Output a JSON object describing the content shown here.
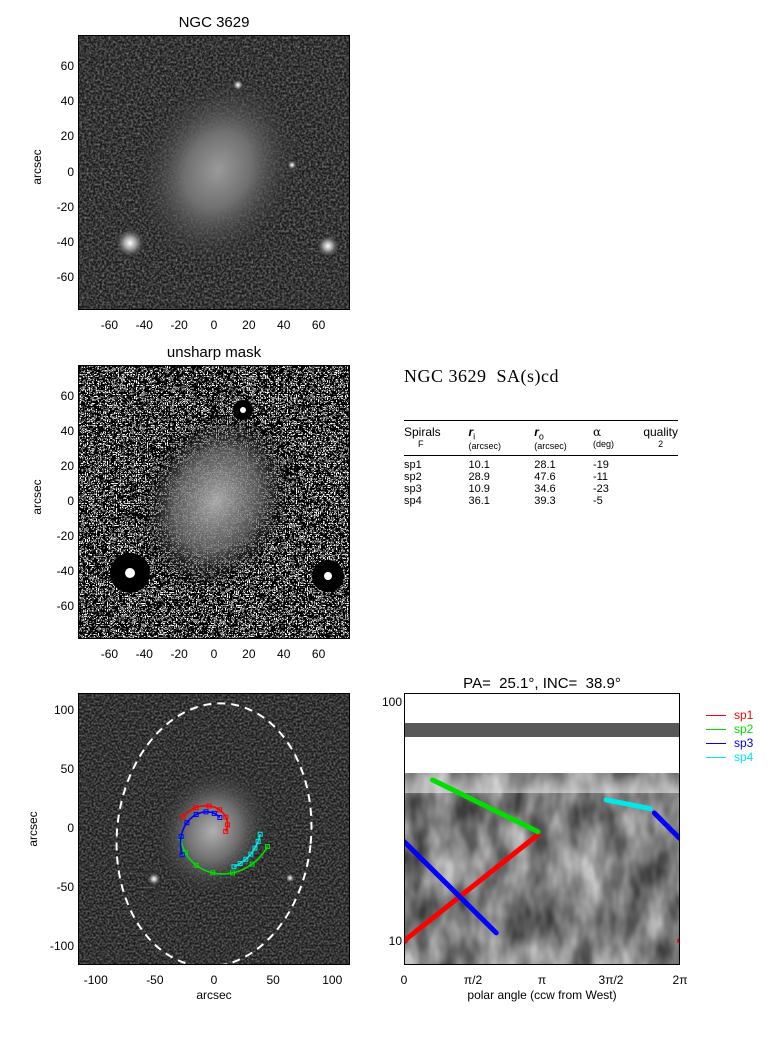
{
  "panel1": {
    "title": "NGC 3629",
    "ylabel": "arcsec",
    "xticks": [
      "-60",
      "-40",
      "-20",
      "0",
      "20",
      "40",
      "60"
    ],
    "yticks": [
      "60",
      "40",
      "20",
      "0",
      "-20",
      "-40",
      "-60"
    ]
  },
  "panel2": {
    "title": "unsharp mask",
    "ylabel": "arcsec",
    "xticks": [
      "-60",
      "-40",
      "-20",
      "0",
      "20",
      "40",
      "60"
    ],
    "yticks": [
      "60",
      "40",
      "20",
      "0",
      "-20",
      "-40",
      "-60"
    ]
  },
  "info": {
    "galaxy_title": "NGC 3629  SA(s)cd",
    "table": {
      "h_spirals": "Spirals",
      "h_spirals_sub": "F",
      "h_ri": "r",
      "h_ri_sub": "i",
      "h_ri_unit": "(arcsec)",
      "h_ro": "r",
      "h_ro_sub": "o",
      "h_ro_unit": "(arcsec)",
      "h_alpha": "α",
      "h_alpha_unit": "(deg)",
      "h_quality": "quality",
      "h_quality_val": "2",
      "rows": [
        {
          "name": "sp1",
          "ri": "10.1",
          "ro": "28.1",
          "alpha": "-19"
        },
        {
          "name": "sp2",
          "ri": "28.9",
          "ro": "47.6",
          "alpha": "-11"
        },
        {
          "name": "sp3",
          "ri": "10.9",
          "ro": "34.6",
          "alpha": "-23"
        },
        {
          "name": "sp4",
          "ri": "36.1",
          "ro": "39.3",
          "alpha": "-5"
        }
      ]
    }
  },
  "panel3": {
    "xlabel": "arcsec",
    "ylabel": "arcsec",
    "xticks": [
      "-100",
      "-50",
      "0",
      "50",
      "100"
    ],
    "yticks": [
      "100",
      "50",
      "0",
      "-50",
      "-100"
    ]
  },
  "panel4": {
    "title": "PA=  25.1°, INC=  38.9°",
    "xlabel": "polar angle (ccw from West)",
    "xticks": [
      "0",
      "π/2",
      "π",
      "3π/2",
      "2π"
    ],
    "yticks": [
      "100",
      "10"
    ]
  },
  "legend": [
    {
      "name": "sp1",
      "color": "#ff0000"
    },
    {
      "name": "sp2",
      "color": "#00e000"
    },
    {
      "name": "sp3",
      "color": "#0000ff"
    },
    {
      "name": "sp4",
      "color": "#00e8e8"
    }
  ],
  "chart_data": [
    {
      "type": "heatmap",
      "title": "NGC 3629",
      "xlabel": "",
      "ylabel": "arcsec",
      "xlim": [
        -78,
        78
      ],
      "ylim": [
        -78,
        78
      ]
    },
    {
      "type": "heatmap",
      "title": "unsharp mask",
      "xlabel": "",
      "ylabel": "arcsec",
      "xlim": [
        -78,
        78
      ],
      "ylim": [
        -78,
        78
      ]
    },
    {
      "type": "heatmap",
      "title": "",
      "xlabel": "arcsec",
      "ylabel": "arcsec",
      "xlim": [
        -115,
        115
      ],
      "ylim": [
        -115,
        115
      ],
      "series": [
        {
          "name": "sp1",
          "color": "#ff0000"
        },
        {
          "name": "sp2",
          "color": "#00e000"
        },
        {
          "name": "sp3",
          "color": "#0000ff"
        },
        {
          "name": "sp4",
          "color": "#00e8e8"
        }
      ]
    },
    {
      "type": "line",
      "title": "PA=  25.1°, INC=  38.9°",
      "xlabel": "polar angle (ccw from West)",
      "ylabel": "",
      "xlim": [
        0,
        6.283
      ],
      "ylim": [
        8,
        110
      ],
      "yscale": "log",
      "legend": "right",
      "series": [
        {
          "name": "sp1",
          "color": "#ff0000",
          "x": [
            0,
            3.05
          ],
          "y": [
            10.1,
            28.1
          ],
          "x2": [
            6.283
          ],
          "y2": [
            10.1
          ]
        },
        {
          "name": "sp2",
          "color": "#00e000",
          "x": [
            0.65,
            3.05
          ],
          "y": [
            47.6,
            28.9
          ]
        },
        {
          "name": "sp3",
          "color": "#0000ff",
          "x": [
            0,
            2.1
          ],
          "y": [
            26.3,
            10.9
          ],
          "x2": [
            5.7,
            6.283
          ],
          "y2": [
            34.6,
            27.0
          ]
        },
        {
          "name": "sp4",
          "color": "#00e8e8",
          "x": [
            4.6,
            5.6
          ],
          "y": [
            39.3,
            36.1
          ]
        }
      ]
    }
  ]
}
